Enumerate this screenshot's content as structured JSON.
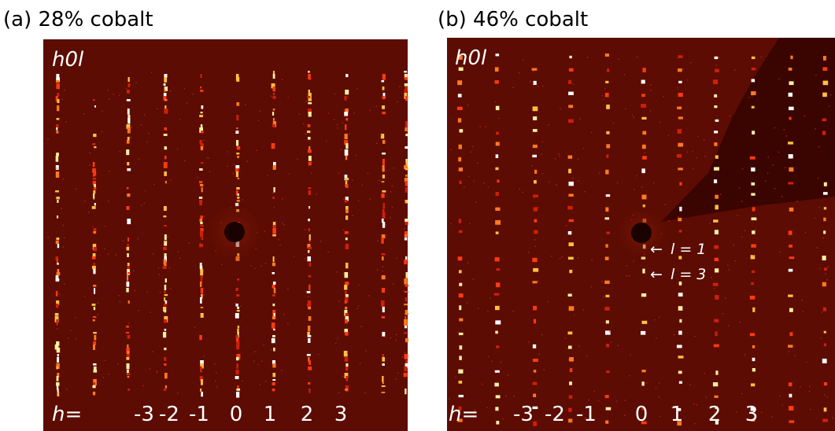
{
  "panels": [
    {
      "title": "(a) 28% cobalt",
      "plane": "h0l",
      "h_prefix": "h=",
      "h_labels": [
        "-3",
        "-2",
        "-1",
        "0",
        "1",
        "2",
        "3"
      ]
    },
    {
      "title": "(b) 46% cobalt",
      "plane": "h0l",
      "h_prefix": "h=",
      "h_labels": [
        "-3",
        "-2",
        "-1",
        "0",
        "1",
        "2",
        "3"
      ],
      "annotations": [
        "l = 1",
        "l = 3"
      ]
    }
  ]
}
